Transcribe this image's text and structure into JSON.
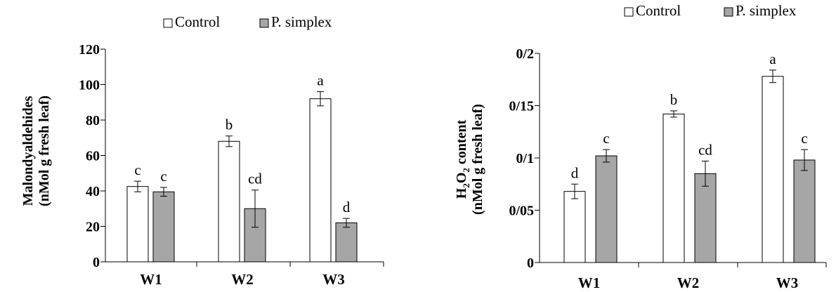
{
  "chart_data": [
    {
      "type": "bar",
      "categories": [
        "W1",
        "W2",
        "W3"
      ],
      "series": [
        {
          "name": "Control",
          "values": [
            42.5,
            68,
            92
          ],
          "errors": [
            3,
            3,
            4
          ],
          "letters": [
            "c",
            "b",
            "a"
          ],
          "fill": "#ffffff"
        },
        {
          "name": "P. simplex",
          "values": [
            39.5,
            30,
            22
          ],
          "errors": [
            2.5,
            10.5,
            2.5
          ],
          "letters": [
            "c",
            "cd",
            "d"
          ],
          "fill": "#a6a6a6"
        }
      ],
      "ylabel_line1": "Malondyaldehides",
      "ylabel_line2": "(nMol g fresh leaf)",
      "ylim": [
        0,
        120
      ],
      "yticks": [
        0,
        20,
        40,
        60,
        80,
        100,
        120
      ],
      "ytick_labels": [
        "0",
        "20",
        "40",
        "60",
        "80",
        "100",
        "120"
      ],
      "grid": false,
      "legend_position": "top"
    },
    {
      "type": "bar",
      "categories": [
        "W1",
        "W2",
        "W3"
      ],
      "series": [
        {
          "name": "Control",
          "values": [
            0.068,
            0.142,
            0.178
          ],
          "errors": [
            0.007,
            0.003,
            0.006
          ],
          "letters": [
            "d",
            "b",
            "a"
          ],
          "fill": "#ffffff"
        },
        {
          "name": "P. simplex",
          "values": [
            0.102,
            0.085,
            0.098
          ],
          "errors": [
            0.006,
            0.012,
            0.01
          ],
          "letters": [
            "c",
            "cd",
            "c"
          ],
          "fill": "#a6a6a6"
        }
      ],
      "ylabel_line1_main": "H",
      "ylabel_line1_sub": "2",
      "ylabel_line1_main2": "O",
      "ylabel_line1_sub2": "2",
      "ylabel_line1_rest": " content",
      "ylabel_line2": "(nMol g fresh leaf)",
      "ylim": [
        0,
        0.2
      ],
      "yticks": [
        0,
        0.05,
        0.1,
        0.15,
        0.2
      ],
      "ytick_labels": [
        "0",
        "0/05",
        "0/1",
        "0/15",
        "0/2"
      ],
      "grid": false,
      "legend_position": "top"
    }
  ]
}
